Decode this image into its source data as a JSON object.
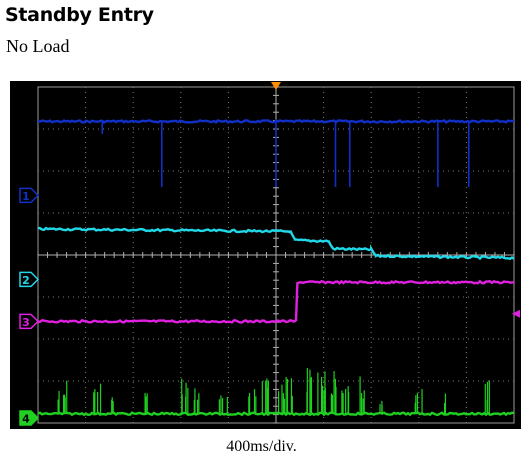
{
  "header": {
    "title": "Standby Entry",
    "subtitle": "No Load"
  },
  "footer": {
    "timebase_label": "400ms/div."
  },
  "colors": {
    "background": "#000000",
    "grid": "#7a7a7a",
    "ch1": "#1030c8",
    "ch2": "#20d8e8",
    "ch3": "#e020e0",
    "ch4": "#20d020",
    "trigger": "#ff8c00"
  },
  "channel_markers": [
    {
      "id": "ch1",
      "label": "1"
    },
    {
      "id": "ch2",
      "label": "2"
    },
    {
      "id": "ch3",
      "label": "3"
    },
    {
      "id": "ch4",
      "label": "4"
    }
  ],
  "chart_data": {
    "type": "line",
    "title": "Standby Entry",
    "subtitle": "No Load",
    "xlabel": "400ms/div.",
    "ylabel": "",
    "grid": true,
    "x_divisions": 10,
    "y_divisions": 8,
    "xlim": [
      0,
      10
    ],
    "ylim": [
      0,
      8
    ],
    "x_units": "divisions (400 ms/div)",
    "y_units": "divisions",
    "trigger_x": 5.0,
    "series": [
      {
        "id": "ch1",
        "color": "#1030c8",
        "points": [
          [
            0,
            7.18
          ],
          [
            10,
            7.18
          ]
        ],
        "spikes": [
          {
            "x": 1.35,
            "to": 6.88
          },
          {
            "x": 2.6,
            "to": 5.62
          },
          {
            "x": 5.0,
            "to": 5.62
          },
          {
            "x": 6.25,
            "to": 5.62
          },
          {
            "x": 6.55,
            "to": 5.62
          },
          {
            "x": 8.4,
            "to": 5.62
          },
          {
            "x": 9.05,
            "to": 5.62
          }
        ]
      },
      {
        "id": "ch2",
        "color": "#20d8e8",
        "points": [
          [
            0,
            4.62
          ],
          [
            5.3,
            4.56
          ],
          [
            5.4,
            4.35
          ],
          [
            6.1,
            4.33
          ],
          [
            6.2,
            4.15
          ],
          [
            7.0,
            4.13
          ],
          [
            7.1,
            3.98
          ],
          [
            10,
            3.93
          ]
        ]
      },
      {
        "id": "ch3",
        "color": "#e020e0",
        "points": [
          [
            0,
            2.42
          ],
          [
            5.42,
            2.42
          ],
          [
            5.45,
            3.35
          ],
          [
            10,
            3.35
          ]
        ]
      },
      {
        "id": "ch4",
        "color": "#20d020",
        "points": [
          [
            0,
            0.22
          ],
          [
            10,
            0.22
          ]
        ],
        "noise_bursts": [
          {
            "x": 0.5,
            "h": 0.6
          },
          {
            "x": 0.6,
            "h": 0.8
          },
          {
            "x": 1.25,
            "h": 1.0
          },
          {
            "x": 1.5,
            "h": 0.4
          },
          {
            "x": 2.3,
            "h": 0.5
          },
          {
            "x": 3.1,
            "h": 0.9
          },
          {
            "x": 3.35,
            "h": 0.7
          },
          {
            "x": 3.9,
            "h": 0.5
          },
          {
            "x": 4.5,
            "h": 0.6
          },
          {
            "x": 4.8,
            "h": 0.9
          },
          {
            "x": 5.1,
            "h": 0.8
          },
          {
            "x": 5.3,
            "h": 1.0
          },
          {
            "x": 5.7,
            "h": 1.1
          },
          {
            "x": 5.95,
            "h": 1.2
          },
          {
            "x": 6.2,
            "h": 1.1
          },
          {
            "x": 6.45,
            "h": 1.0
          },
          {
            "x": 6.85,
            "h": 0.9
          },
          {
            "x": 7.2,
            "h": 0.4
          },
          {
            "x": 8.0,
            "h": 0.6
          },
          {
            "x": 8.6,
            "h": 0.5
          },
          {
            "x": 9.4,
            "h": 0.8
          }
        ]
      }
    ],
    "channel_ground_levels": {
      "ch1": 5.42,
      "ch2": 3.42,
      "ch3": 2.42,
      "ch4": 0.12
    }
  }
}
